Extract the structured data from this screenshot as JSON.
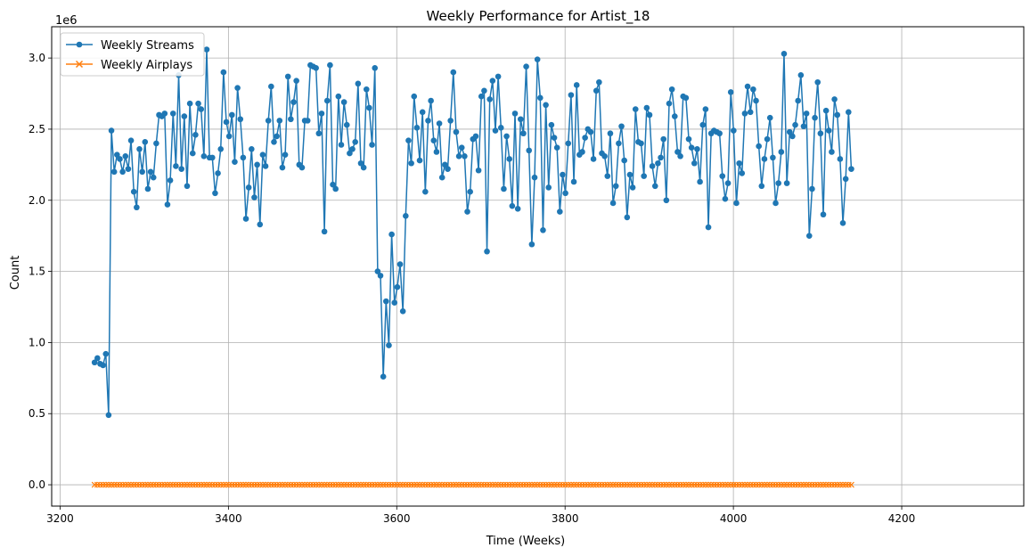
{
  "chart_data": {
    "type": "line",
    "title": "Weekly Performance for Artist_18",
    "xlabel": "Time (Weeks)",
    "ylabel": "Count",
    "y_offset_label": "1e6",
    "xlim": [
      3190,
      4345
    ],
    "ylim": [
      -0.15,
      3.22
    ],
    "x_ticks": [
      3200,
      3400,
      3600,
      3800,
      4000,
      4200
    ],
    "y_ticks": [
      0.0,
      0.5,
      1.0,
      1.5,
      2.0,
      2.5,
      3.0
    ],
    "grid": true,
    "legend_placement": "top-left",
    "x_start": 3241,
    "x_step": 3.33,
    "series": [
      {
        "name": "Weekly Streams",
        "color": "#1f77b4",
        "marker": "circle",
        "values": [
          0.86,
          0.89,
          0.85,
          0.84,
          0.92,
          0.49,
          2.49,
          2.2,
          2.32,
          2.29,
          2.2,
          2.31,
          2.22,
          2.42,
          2.06,
          1.95,
          2.36,
          2.2,
          2.41,
          2.08,
          2.2,
          2.16,
          2.4,
          2.6,
          2.59,
          2.61,
          1.97,
          2.14,
          2.61,
          2.24,
          2.88,
          2.22,
          2.59,
          2.1,
          2.68,
          2.33,
          2.46,
          2.68,
          2.64,
          2.31,
          3.06,
          2.3,
          2.3,
          2.05,
          2.19,
          2.36,
          2.9,
          2.55,
          2.45,
          2.6,
          2.27,
          2.79,
          2.57,
          2.3,
          1.87,
          2.09,
          2.36,
          2.02,
          2.25,
          1.83,
          2.32,
          2.24,
          2.56,
          2.8,
          2.41,
          2.45,
          2.56,
          2.23,
          2.32,
          2.87,
          2.57,
          2.69,
          2.84,
          2.25,
          2.23,
          2.56,
          2.56,
          2.95,
          2.94,
          2.93,
          2.47,
          2.61,
          1.78,
          2.7,
          2.95,
          2.11,
          2.08,
          2.73,
          2.39,
          2.69,
          2.53,
          2.33,
          2.36,
          2.41,
          2.82,
          2.26,
          2.23,
          2.78,
          2.65,
          2.39,
          2.93,
          1.5,
          1.47,
          0.76,
          1.29,
          0.98,
          1.76,
          1.28,
          1.39,
          1.55,
          1.22,
          1.89,
          2.42,
          2.26,
          2.73,
          2.51,
          2.28,
          2.62,
          2.06,
          2.56,
          2.7,
          2.42,
          2.34,
          2.54,
          2.16,
          2.25,
          2.22,
          2.56,
          2.9,
          2.48,
          2.31,
          2.37,
          2.31,
          1.92,
          2.06,
          2.43,
          2.45,
          2.21,
          2.73,
          2.77,
          1.64,
          2.71,
          2.84,
          2.49,
          2.87,
          2.51,
          2.08,
          2.45,
          2.29,
          1.96,
          2.61,
          1.94,
          2.57,
          2.47,
          2.94,
          2.35,
          1.69,
          2.16,
          2.99,
          2.72,
          1.79,
          2.67,
          2.09,
          2.53,
          2.44,
          2.37,
          1.92,
          2.18,
          2.05,
          2.4,
          2.74,
          2.13,
          2.81,
          2.32,
          2.34,
          2.44,
          2.5,
          2.48,
          2.29,
          2.77,
          2.83,
          2.33,
          2.31,
          2.17,
          2.47,
          1.98,
          2.1,
          2.4,
          2.52,
          2.28,
          1.88,
          2.18,
          2.09,
          2.64,
          2.41,
          2.4,
          2.17,
          2.65,
          2.6,
          2.24,
          2.1,
          2.26,
          2.3,
          2.43,
          2.0,
          2.68,
          2.78,
          2.59,
          2.34,
          2.31,
          2.73,
          2.72,
          2.43,
          2.37,
          2.26,
          2.36,
          2.13,
          2.53,
          2.64,
          1.81,
          2.47,
          2.49,
          2.48,
          2.47,
          2.17,
          2.01,
          2.12,
          2.76,
          2.49,
          1.98,
          2.26,
          2.19,
          2.61,
          2.8,
          2.62,
          2.78,
          2.7,
          2.38,
          2.1,
          2.29,
          2.43,
          2.58,
          2.3,
          1.98,
          2.12,
          2.34,
          3.03,
          2.12,
          2.48,
          2.45,
          2.53,
          2.7,
          2.88,
          2.52,
          2.61,
          1.75,
          2.08,
          2.58,
          2.83,
          2.47,
          1.9,
          2.63,
          2.49,
          2.34,
          2.71,
          2.6,
          2.29,
          1.84,
          2.15,
          2.62,
          2.22
        ]
      },
      {
        "name": "Weekly Airplays",
        "color": "#ff7f0e",
        "marker": "x",
        "constant_value": 0.0
      }
    ]
  }
}
